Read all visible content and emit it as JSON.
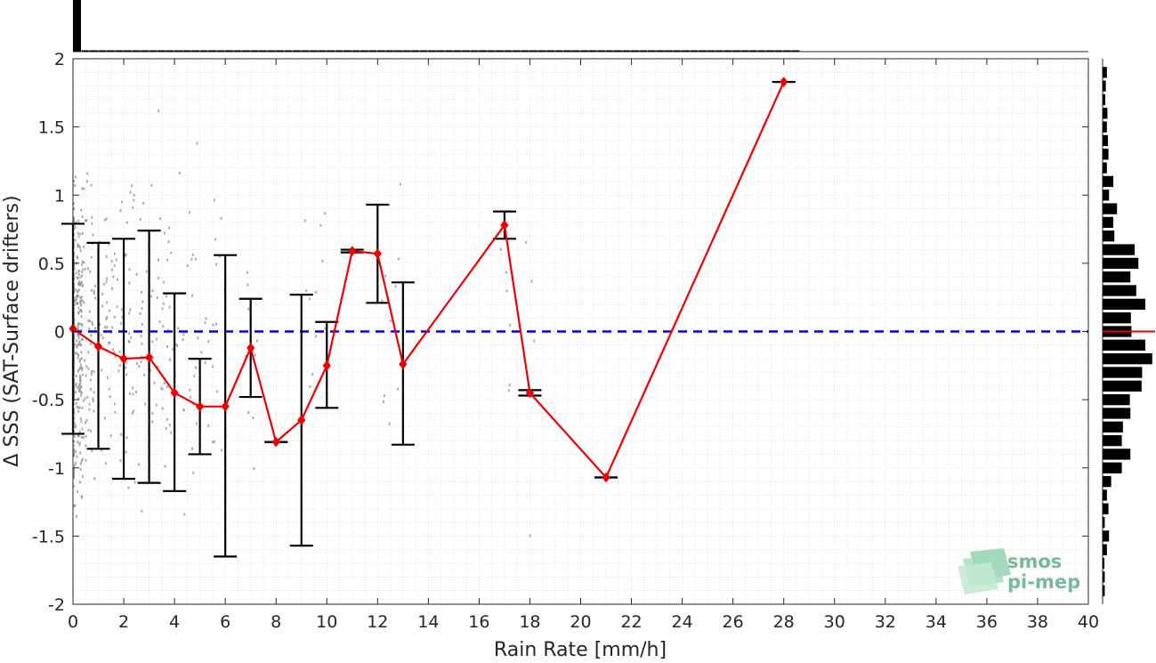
{
  "chart_data": {
    "type": "line",
    "xlabel": "Rain Rate [mm/h]",
    "ylabel": "Δ SSS (SAT-Surface drifters)",
    "xlim": [
      0,
      40
    ],
    "ylim": [
      -2,
      2
    ],
    "xticks": [
      "0",
      "2",
      "4",
      "6",
      "8",
      "10",
      "12",
      "14",
      "16",
      "18",
      "20",
      "22",
      "24",
      "26",
      "28",
      "30",
      "32",
      "34",
      "36",
      "38",
      "40"
    ],
    "yticks": [
      "2",
      "1.5",
      "1",
      "0.5",
      "0",
      "-0.5",
      "-1",
      "-1.5",
      "-2"
    ],
    "grid": true,
    "reference_line": {
      "y": 0,
      "style": "dashed",
      "color": "#0000dd"
    },
    "series": [
      {
        "color": "#ee0000",
        "marker": "diamond",
        "points": [
          {
            "x": 0,
            "y": 0.02,
            "low": -0.75,
            "high": 0.79
          },
          {
            "x": 1,
            "y": -0.11,
            "low": -0.86,
            "high": 0.65
          },
          {
            "x": 2,
            "y": -0.2,
            "low": -1.08,
            "high": 0.68
          },
          {
            "x": 3,
            "y": -0.19,
            "low": -1.11,
            "high": 0.74
          },
          {
            "x": 4,
            "y": -0.45,
            "low": -1.17,
            "high": 0.28
          },
          {
            "x": 5,
            "y": -0.55,
            "low": -0.9,
            "high": -0.2
          },
          {
            "x": 6,
            "y": -0.55,
            "low": -1.65,
            "high": 0.56
          },
          {
            "x": 7,
            "y": -0.12,
            "low": -0.48,
            "high": 0.24
          },
          {
            "x": 8,
            "y": -0.81,
            "low": -0.81,
            "high": -0.81
          },
          {
            "x": 9,
            "y": -0.65,
            "low": -1.57,
            "high": 0.27
          },
          {
            "x": 10,
            "y": -0.25,
            "low": -0.56,
            "high": 0.07
          },
          {
            "x": 11,
            "y": 0.59,
            "low": 0.58,
            "high": 0.6
          },
          {
            "x": 12,
            "y": 0.57,
            "low": 0.21,
            "high": 0.93
          },
          {
            "x": 13,
            "y": -0.24,
            "low": -0.83,
            "high": 0.36
          },
          {
            "x": 17,
            "y": 0.78,
            "low": 0.68,
            "high": 0.88
          },
          {
            "x": 18,
            "y": -0.45,
            "low": -0.47,
            "high": -0.43
          },
          {
            "x": 21,
            "y": -1.07,
            "low": -1.07,
            "high": -1.07
          },
          {
            "x": 28,
            "y": 1.83,
            "low": 1.83,
            "high": 1.83
          }
        ]
      }
    ],
    "top_histogram": {
      "bin_width": 0.333,
      "values": [
        1.0,
        0.02,
        0.015,
        0.01,
        0.008,
        0.008,
        0.007,
        0.007,
        0.006,
        0.006,
        0.006,
        0.006,
        0.006,
        0.005,
        0.005,
        0.005,
        0.005,
        0.005,
        0.005,
        0.005,
        0.005,
        0.005,
        0.005,
        0.005,
        0.005,
        0.005,
        0.005,
        0.005,
        0.005,
        0.005,
        0.005,
        0.005,
        0.005,
        0.005,
        0.005,
        0.005,
        0.005,
        0.005,
        0.004,
        0.004,
        0.004,
        0.004,
        0.004,
        0.004,
        0.004,
        0.004,
        0.004,
        0.004,
        0.004,
        0.004,
        0.004,
        0.004,
        0.004,
        0.004,
        0.004,
        0.004,
        0.004,
        0.004,
        0.004,
        0.004,
        0.004,
        0.004,
        0.004,
        0.004,
        0.004,
        0.004,
        0.004,
        0.004,
        0.004,
        0.004,
        0.004,
        0.004,
        0.004,
        0.004,
        0.004,
        0.004,
        0.004,
        0.004,
        0.004,
        0.004,
        0.004,
        0.004,
        0.004,
        0.004,
        0.004,
        0.004
      ]
    },
    "right_histogram": {
      "bins": [
        {
          "y": 1.9,
          "v": 0.08
        },
        {
          "y": 1.8,
          "v": 0.06
        },
        {
          "y": 1.7,
          "v": 0.05
        },
        {
          "y": 1.6,
          "v": 0.09
        },
        {
          "y": 1.5,
          "v": 0.08
        },
        {
          "y": 1.4,
          "v": 0.1
        },
        {
          "y": 1.3,
          "v": 0.11
        },
        {
          "y": 1.2,
          "v": 0.08
        },
        {
          "y": 1.1,
          "v": 0.2
        },
        {
          "y": 1.0,
          "v": 0.12
        },
        {
          "y": 0.9,
          "v": 0.27
        },
        {
          "y": 0.8,
          "v": 0.2
        },
        {
          "y": 0.7,
          "v": 0.22
        },
        {
          "y": 0.6,
          "v": 0.6
        },
        {
          "y": 0.5,
          "v": 0.67
        },
        {
          "y": 0.4,
          "v": 0.52
        },
        {
          "y": 0.3,
          "v": 0.63
        },
        {
          "y": 0.2,
          "v": 0.8
        },
        {
          "y": 0.1,
          "v": 0.53
        },
        {
          "y": 0.0,
          "v": 0.54
        },
        {
          "y": -0.1,
          "v": 0.8
        },
        {
          "y": -0.2,
          "v": 0.93
        },
        {
          "y": -0.3,
          "v": 0.74
        },
        {
          "y": -0.4,
          "v": 0.73
        },
        {
          "y": -0.5,
          "v": 0.51
        },
        {
          "y": -0.6,
          "v": 0.52
        },
        {
          "y": -0.7,
          "v": 0.38
        },
        {
          "y": -0.8,
          "v": 0.36
        },
        {
          "y": -0.9,
          "v": 0.52
        },
        {
          "y": -1.0,
          "v": 0.36
        },
        {
          "y": -1.1,
          "v": 0.16
        },
        {
          "y": -1.2,
          "v": 0.08
        },
        {
          "y": -1.3,
          "v": 0.11
        },
        {
          "y": -1.4,
          "v": 0.04
        },
        {
          "y": -1.5,
          "v": 0.12
        },
        {
          "y": -1.6,
          "v": 0.08
        },
        {
          "y": -1.7,
          "v": 0.03
        },
        {
          "y": -1.8,
          "v": 0.04
        },
        {
          "y": -1.9,
          "v": 0.04
        }
      ],
      "mean_line_y": 0.0
    }
  },
  "logo": {
    "line1": "smos",
    "line2": "pi-mep"
  }
}
